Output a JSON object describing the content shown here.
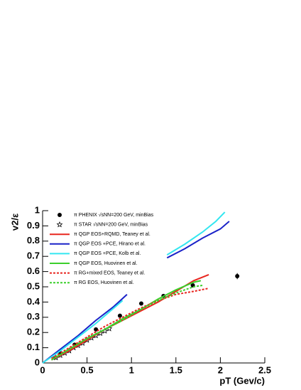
{
  "chart_data": {
    "type": "line",
    "xlabel": "pT (Gev/c)",
    "ylabel": "v2/ε",
    "xlim": [
      0,
      2.5
    ],
    "ylim": [
      0,
      1
    ],
    "xticks": [
      0,
      0.5,
      1,
      1.5,
      2,
      2.5
    ],
    "yticks": [
      0,
      0.1,
      0.2,
      0.3,
      0.4,
      0.5,
      0.6,
      0.7,
      0.8,
      0.9,
      1
    ],
    "legend": "upper left",
    "series": [
      {
        "name": "π PHENIX √sNN=200 GeV, minBias",
        "color": "#000000",
        "marker": "circle",
        "x": [
          0.2,
          0.36,
          0.6,
          0.87,
          1.11,
          1.36,
          1.69,
          2.19
        ],
        "values": [
          0.065,
          0.12,
          0.22,
          0.31,
          0.39,
          0.44,
          0.51,
          0.57
        ],
        "errors": [
          null,
          null,
          null,
          null,
          null,
          null,
          null,
          0.02
        ]
      },
      {
        "name": "π STAR √sNN=200 GeV, minBias",
        "color": "#000000",
        "marker": "star",
        "x": [
          0.15,
          0.2,
          0.25,
          0.3,
          0.35,
          0.4,
          0.45,
          0.5,
          0.55,
          0.6,
          0.65,
          0.7,
          0.75
        ],
        "values": [
          0.035,
          0.05,
          0.065,
          0.08,
          0.1,
          0.115,
          0.13,
          0.15,
          0.165,
          0.18,
          0.195,
          0.21,
          0.225
        ]
      },
      {
        "name": "π  QGP EOS+RQMD, Teaney et al.",
        "color": "#e8261f",
        "line": "solid",
        "x": [
          0.1,
          0.3,
          0.5,
          0.7,
          0.9,
          1.1,
          1.3,
          1.5,
          1.7,
          1.87
        ],
        "values": [
          0.02,
          0.08,
          0.15,
          0.22,
          0.28,
          0.34,
          0.4,
          0.47,
          0.54,
          0.58
        ]
      },
      {
        "name": "π  QGP EOS +PCE, Hirano et al.",
        "color": "#1a22c8",
        "line": "solid",
        "x": [
          0,
          0.2,
          0.4,
          0.6,
          0.8,
          0.95,
          null,
          1.4,
          1.6,
          1.8,
          2.0,
          2.1
        ],
        "values": [
          0,
          0.09,
          0.18,
          0.28,
          0.37,
          0.45,
          null,
          0.69,
          0.75,
          0.82,
          0.88,
          0.93
        ]
      },
      {
        "name": "π  QGP EOS +PCE, Kolb et al.",
        "color": "#33e6f0",
        "line": "solid",
        "x": [
          0,
          0.2,
          0.4,
          0.6,
          0.8,
          0.9,
          null,
          1.4,
          1.6,
          1.8,
          1.95,
          2.05
        ],
        "values": [
          0,
          0.08,
          0.17,
          0.26,
          0.36,
          0.41,
          null,
          0.71,
          0.78,
          0.86,
          0.93,
          0.99
        ]
      },
      {
        "name": "π  QGP EOS, Huovinen et al.",
        "color": "#3ccf2c",
        "line": "solid",
        "x": [
          0.1,
          0.3,
          0.5,
          0.7,
          0.9,
          1.1,
          1.3,
          1.5,
          1.7,
          1.78
        ],
        "values": [
          0.02,
          0.09,
          0.16,
          0.22,
          0.29,
          0.35,
          0.42,
          0.48,
          0.53,
          0.54
        ]
      },
      {
        "name": "π  RG+mixed EOS, Teaney et al.",
        "color": "#e8261f",
        "line": "dotted",
        "x": [
          0.1,
          0.3,
          0.5,
          0.7,
          0.9,
          1.1,
          1.3,
          1.5,
          1.7,
          1.87
        ],
        "values": [
          0.03,
          0.1,
          0.17,
          0.24,
          0.3,
          0.36,
          0.41,
          0.45,
          0.47,
          0.49
        ]
      },
      {
        "name": "π  RG EOS, Huovinen et al.",
        "color": "#3ccf2c",
        "line": "dotted",
        "x": [
          0.1,
          0.3,
          0.5,
          0.7,
          0.9,
          1.1,
          1.3,
          1.5,
          1.7,
          1.8
        ],
        "values": [
          0.02,
          0.09,
          0.16,
          0.22,
          0.28,
          0.35,
          0.41,
          0.46,
          0.5,
          0.51
        ]
      }
    ]
  }
}
